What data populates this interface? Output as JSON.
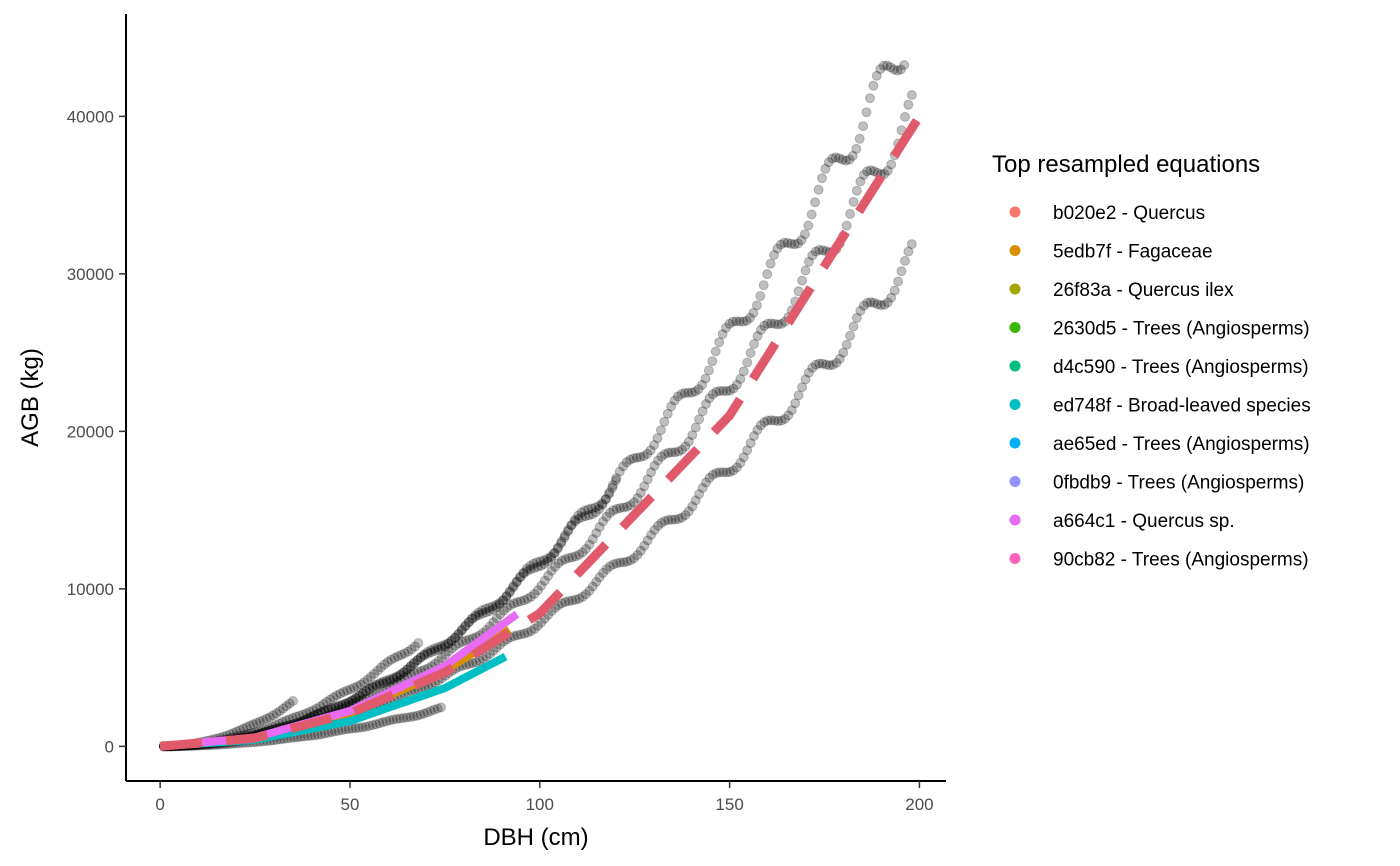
{
  "chart_data": {
    "type": "scatter",
    "title": "",
    "xlabel": "DBH (cm)",
    "ylabel": "AGB (kg)",
    "xlim": [
      -9,
      207
    ],
    "ylim": [
      -2200,
      46500
    ],
    "x_ticks": [
      0,
      50,
      100,
      150,
      200
    ],
    "y_ticks": [
      0,
      10000,
      20000,
      30000,
      40000
    ],
    "grid": false,
    "legend": {
      "title": "Top resampled equations",
      "placement": "right",
      "entries": [
        {
          "label": "b020e2 - Quercus",
          "color": "#F8766D"
        },
        {
          "label": "5edb7f - Fagaceae",
          "color": "#D89000"
        },
        {
          "label": "26f83a - Quercus ilex",
          "color": "#A3A500"
        },
        {
          "label": "2630d5 - Trees (Angiosperms)",
          "color": "#39B600"
        },
        {
          "label": "d4c590 - Trees (Angiosperms)",
          "color": "#00BF7D"
        },
        {
          "label": "ed748f - Broad-leaved species",
          "color": "#00BFC4"
        },
        {
          "label": "ae65ed - Trees (Angiosperms)",
          "color": "#00B0F6"
        },
        {
          "label": "0fbdb9 - Trees (Angiosperms)",
          "color": "#9590FF"
        },
        {
          "label": "a664c1 - Quercus sp.",
          "color": "#E76BF3"
        },
        {
          "label": "90cb82 - Trees (Angiosperms)",
          "color": "#FF62BC"
        }
      ]
    },
    "point_series": [
      {
        "x_max": 35,
        "y_max": 2800,
        "color": "#000000",
        "alpha": 0.25
      },
      {
        "x_max": 68,
        "y_max": 6700,
        "color": "#000000",
        "alpha": 0.25
      },
      {
        "x_max": 74,
        "y_max": 2400,
        "color": "#000000",
        "alpha": 0.25
      },
      {
        "x_max": 120,
        "y_max": 16900,
        "color": "#000000",
        "alpha": 0.25
      },
      {
        "x_max": 196,
        "y_max": 44600,
        "color": "#000000",
        "alpha": 0.25
      },
      {
        "x_max": 198,
        "y_max": 40200,
        "color": "#000000",
        "alpha": 0.25
      },
      {
        "x_max": 198,
        "y_max": 31000,
        "color": "#000000",
        "alpha": 0.25
      }
    ],
    "fit_lines": [
      {
        "equation": "b020e2 - Quercus",
        "x": [
          0,
          25,
          50,
          75,
          90
        ],
        "y": [
          0,
          560,
          2150,
          4900,
          7300
        ],
        "color": "#F8766D"
      },
      {
        "equation": "5edb7f - Fagaceae",
        "x": [
          0,
          25,
          50,
          75,
          92
        ],
        "y": [
          0,
          540,
          2100,
          4800,
          7400
        ],
        "color": "#D89000"
      },
      {
        "equation": "ed748f - Broad-leaved species",
        "x": [
          0,
          25,
          50,
          75,
          91
        ],
        "y": [
          0,
          420,
          1600,
          3700,
          5700
        ],
        "color": "#00BFC4"
      },
      {
        "equation": "a664c1 - Quercus sp.",
        "x": [
          0,
          25,
          50,
          75,
          94
        ],
        "y": [
          0,
          560,
          2250,
          5100,
          8400
        ],
        "color": "#E76BF3"
      },
      {
        "equation": "aggregate",
        "x": [
          0,
          25,
          50,
          75,
          100,
          150,
          200
        ],
        "y": [
          0,
          520,
          2100,
          4700,
          8450,
          21000,
          40000
        ],
        "color": "#E15A6C",
        "dashed": true
      }
    ]
  }
}
